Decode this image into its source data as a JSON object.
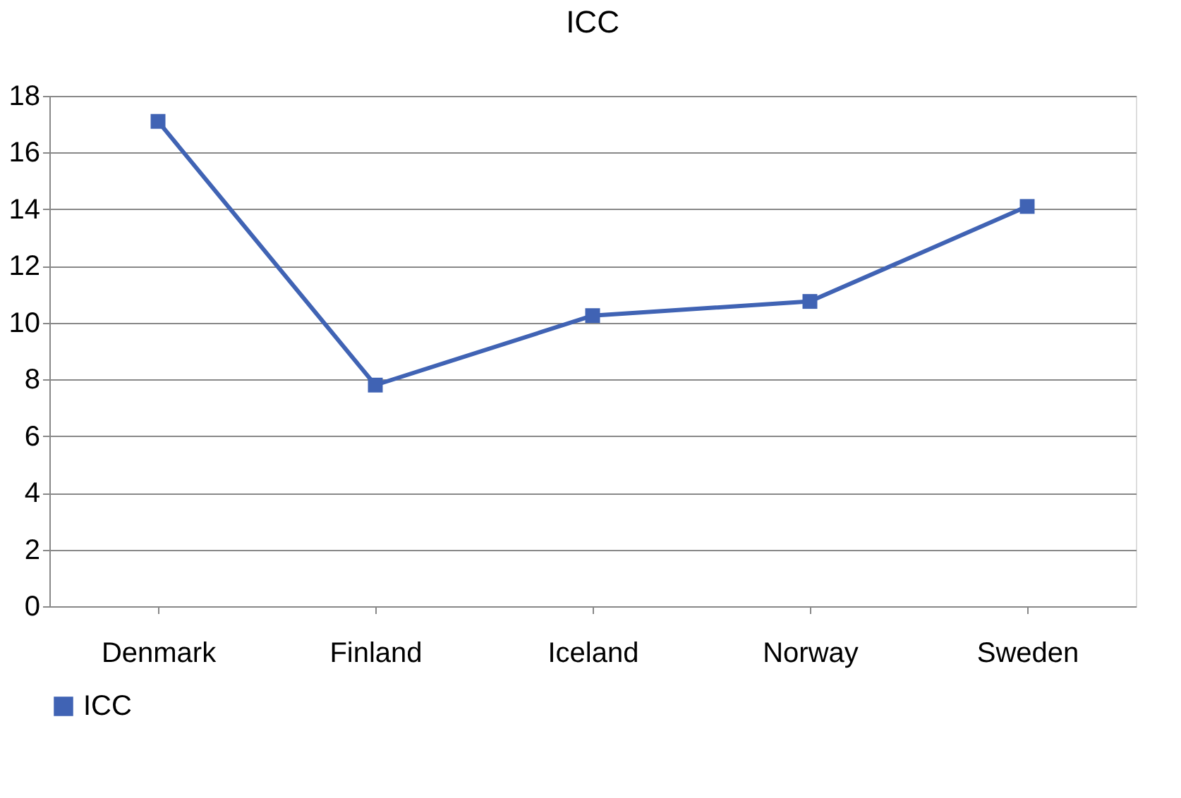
{
  "chart_data": {
    "type": "line",
    "title": "ICC",
    "categories": [
      "Denmark",
      "Finland",
      "Iceland",
      "Norway",
      "Sweden"
    ],
    "series": [
      {
        "name": "ICC",
        "color": "#4063b4",
        "values": [
          17.1,
          7.8,
          10.25,
          10.75,
          14.1
        ]
      }
    ],
    "ylim": [
      0,
      18
    ],
    "yticks": [
      0,
      2,
      4,
      6,
      8,
      10,
      12,
      14,
      16,
      18
    ],
    "grid": "y",
    "legend": "bottom",
    "marker": "square",
    "line_style": "solid"
  }
}
